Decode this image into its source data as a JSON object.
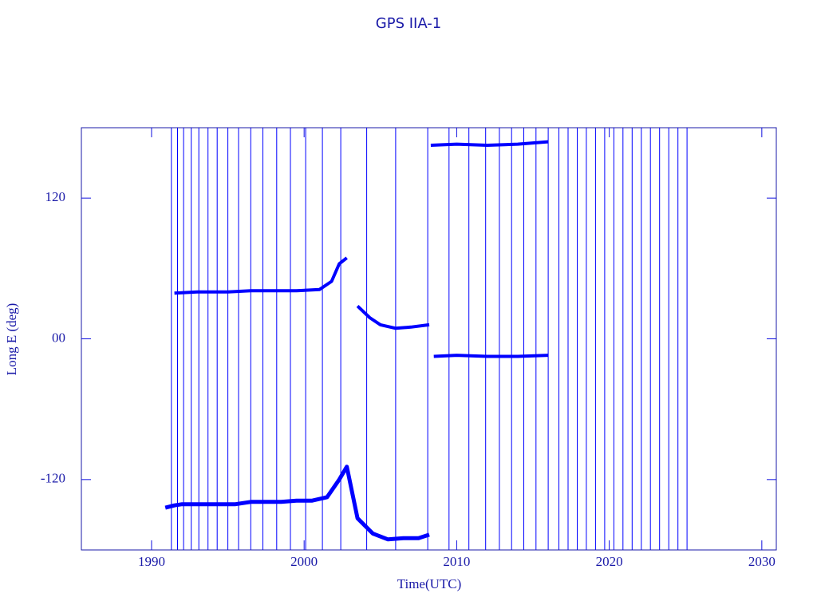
{
  "chart_data": {
    "type": "line",
    "title": "GPS IIA-1",
    "xlabel": "Time(UTC)",
    "ylabel": "Long E (deg)",
    "xlim": [
      1985.4,
      2030.95
    ],
    "xticks": [
      1990,
      2000,
      2010,
      2020,
      2030
    ],
    "ylim": [
      -180,
      180
    ],
    "yticks": [
      -120,
      {
        "value": 0,
        "label": "00"
      },
      120
    ],
    "color": "#1010e0",
    "series": [
      {
        "color": "#0000ff",
        "line_width": 1,
        "x": [
          1991.3,
          1991.3,
          1991.7,
          1991.7,
          1992.1,
          1992.1,
          1992.6,
          1992.6,
          1993.1,
          1993.1,
          1993.7,
          1993.7,
          1994.3,
          1994.3,
          1995,
          1995,
          1995.7,
          1995.7,
          1996.5,
          1996.5,
          1997.3,
          1997.3,
          1998.2,
          1998.2,
          1999.1,
          1999.1,
          2000.1,
          2000.1,
          2001.2,
          2001.2,
          2002.4,
          2002.4,
          2004.1,
          2004.1,
          2006,
          2006,
          2008.1,
          2008.1,
          2009.5,
          2009.5,
          2010.8,
          2010.8,
          2011.9,
          2011.9,
          2012.8,
          2012.8,
          2013.6,
          2013.6,
          2014.4,
          2014.4,
          2015.2,
          2015.2,
          2016,
          2016,
          2016.7,
          2016.7,
          2017.3,
          2017.3,
          2017.9,
          2017.9,
          2018.5,
          2018.5,
          2019.1,
          2019.1,
          2019.7,
          2019.7,
          2020.3,
          2020.3,
          2020.9,
          2020.9,
          2021.5,
          2021.5,
          2022.1,
          2022.1,
          2022.7,
          2022.7,
          2023.3,
          2023.3,
          2023.9,
          2023.9,
          2024.5,
          2024.5,
          2025.1,
          2025.1
        ],
        "values": [
          180,
          -180,
          -180,
          180,
          180,
          -180,
          -180,
          180,
          180,
          -180,
          -180,
          180,
          180,
          -180,
          -180,
          180,
          180,
          -180,
          -180,
          180,
          180,
          -180,
          -180,
          180,
          180,
          -180,
          -180,
          180,
          180,
          -180,
          -180,
          180,
          180,
          -180,
          -180,
          180,
          180,
          -180,
          -180,
          180,
          180,
          -180,
          -180,
          180,
          180,
          -180,
          -180,
          180,
          180,
          -180,
          -180,
          180,
          180,
          -180,
          -180,
          180,
          180,
          -180,
          -180,
          180,
          180,
          -180,
          -180,
          180,
          180,
          -180,
          -180,
          180,
          180,
          -180,
          -180,
          180,
          180,
          -180,
          -180,
          180,
          180,
          -180,
          -180,
          180,
          180,
          -180,
          -180,
          180
        ]
      },
      {
        "color": "#0000ff",
        "line_width": 5,
        "x": [
          1990.9,
          1991.5,
          1992,
          1994,
          1995.5,
          1996.5,
          1997.5,
          1998.5,
          1999.5,
          2000.5,
          2001.5,
          2002.3,
          2002.8,
          2003.5,
          2004.5,
          2005.5,
          2006.5,
          2007.5,
          2008.2
        ],
        "values": [
          -144,
          -142,
          -141,
          -141,
          -141,
          -139,
          -139,
          -139,
          -138,
          -138,
          -135,
          -120,
          -109,
          -153,
          -166,
          -171,
          -170,
          -170,
          -167
        ]
      },
      {
        "color": "#0000ff",
        "line_width": 4,
        "x": [
          1991.5,
          1993,
          1995,
          1996.5,
          1998,
          1999.5,
          2001,
          2001.8,
          2002.3,
          2002.8
        ],
        "values": [
          39,
          40,
          40,
          41,
          41,
          41,
          42,
          49,
          64,
          69
        ]
      },
      {
        "color": "#0000ff",
        "line_width": 4,
        "x": [
          2003.5,
          2004.3,
          2005,
          2006,
          2007,
          2008.2
        ],
        "values": [
          28,
          18,
          12,
          9,
          10,
          12
        ]
      },
      {
        "color": "#0000ff",
        "line_width": 4,
        "x": [
          2008.5,
          2010,
          2012,
          2014,
          2016
        ],
        "values": [
          -15,
          -14,
          -15,
          -15,
          -14
        ]
      },
      {
        "color": "#0000ff",
        "line_width": 4,
        "x": [
          2008.3,
          2010,
          2012,
          2014,
          2016
        ],
        "values": [
          165,
          166,
          165,
          166,
          168
        ]
      }
    ]
  }
}
